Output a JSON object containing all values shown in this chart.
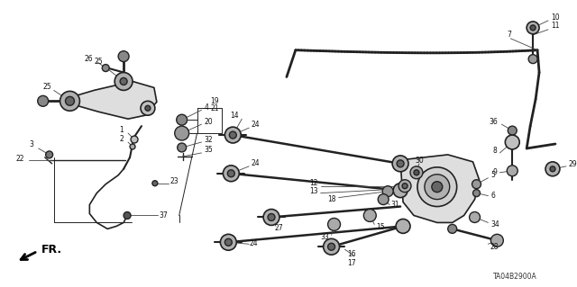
{
  "bg_color": "#ffffff",
  "diagram_id": "TA04B2900A",
  "fr_label": "FR.",
  "line_color": "#222222",
  "text_color": "#111111"
}
